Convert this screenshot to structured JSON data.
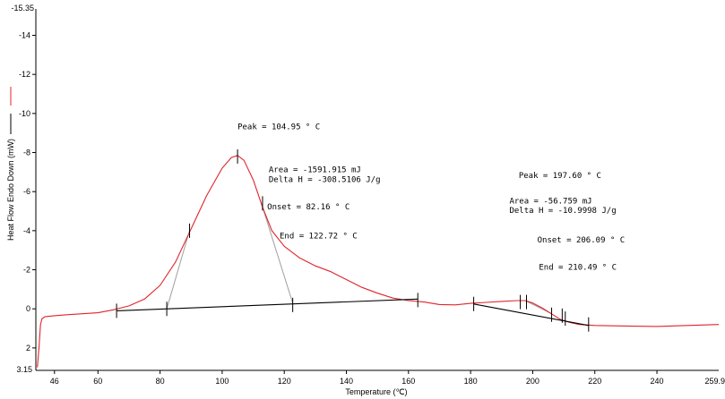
{
  "chart_data": {
    "type": "line",
    "xlabel": "Temperature (℃)",
    "ylabel": "Heat Flow Endo Down (mW)",
    "xlim": [
      40,
      259.9
    ],
    "ylim": [
      3.15,
      -15.35
    ],
    "x_ticks": [
      46,
      60,
      80,
      100,
      120,
      140,
      160,
      180,
      200,
      220,
      240
    ],
    "x_tick_labels": [
      "46",
      "60",
      "80",
      "100",
      "120",
      "140",
      "160",
      "180",
      "200",
      "220",
      "240"
    ],
    "x_max_label": "259.9",
    "y_ticks": [
      -14,
      -12,
      -10,
      -8,
      -6,
      -4,
      -2,
      0,
      2
    ],
    "y_tick_labels": [
      "-14",
      "-12",
      "-10",
      "-8",
      "-6",
      "-4",
      "-2",
      "0",
      "2"
    ],
    "y_top_label": "-15.35",
    "y_bottom_label": "3.15",
    "legend_position": "left",
    "series": [
      {
        "color": "#e0242a",
        "points": [
          [
            40.5,
            3.0
          ],
          [
            41,
            2.0
          ],
          [
            41.5,
            0.8
          ],
          [
            42,
            0.5
          ],
          [
            43,
            0.4
          ],
          [
            46,
            0.35
          ],
          [
            50,
            0.3
          ],
          [
            55,
            0.25
          ],
          [
            60,
            0.2
          ],
          [
            65,
            0.05
          ],
          [
            70,
            -0.15
          ],
          [
            75,
            -0.5
          ],
          [
            80,
            -1.2
          ],
          [
            85,
            -2.4
          ],
          [
            90,
            -4.1
          ],
          [
            95,
            -5.8
          ],
          [
            100,
            -7.2
          ],
          [
            103,
            -7.75
          ],
          [
            104.95,
            -7.85
          ],
          [
            107,
            -7.6
          ],
          [
            110,
            -6.6
          ],
          [
            113,
            -5.2
          ],
          [
            116,
            -4.0
          ],
          [
            120,
            -3.2
          ],
          [
            125,
            -2.6
          ],
          [
            130,
            -2.2
          ],
          [
            135,
            -1.9
          ],
          [
            140,
            -1.5
          ],
          [
            145,
            -1.1
          ],
          [
            150,
            -0.8
          ],
          [
            155,
            -0.55
          ],
          [
            160,
            -0.42
          ],
          [
            165,
            -0.35
          ],
          [
            170,
            -0.22
          ],
          [
            175,
            -0.2
          ],
          [
            180,
            -0.28
          ],
          [
            185,
            -0.33
          ],
          [
            190,
            -0.38
          ],
          [
            195,
            -0.42
          ],
          [
            197.6,
            -0.42
          ],
          [
            200,
            -0.3
          ],
          [
            203,
            -0.05
          ],
          [
            206,
            0.25
          ],
          [
            209,
            0.55
          ],
          [
            212,
            0.7
          ],
          [
            215,
            0.8
          ],
          [
            220,
            0.85
          ],
          [
            230,
            0.88
          ],
          [
            240,
            0.9
          ],
          [
            250,
            0.85
          ],
          [
            259.9,
            0.8
          ]
        ]
      },
      {
        "color": "#000000",
        "points": [
          [
            66,
            0.1
          ],
          [
            163,
            -0.5
          ]
        ]
      },
      {
        "color": "#000000",
        "points": [
          [
            181,
            -0.25
          ],
          [
            218,
            0.85
          ]
        ]
      }
    ],
    "guide_lines": [
      {
        "color": "#a0a0a0",
        "points": [
          [
            82.16,
            0.0
          ],
          [
            89.5,
            -4.0
          ]
        ]
      },
      {
        "color": "#a0a0a0",
        "points": [
          [
            113,
            -5.2
          ],
          [
            122.72,
            -0.3
          ]
        ]
      },
      {
        "color": "#a0a0a0",
        "points": [
          [
            197.6,
            -0.42
          ],
          [
            206.09,
            0.25
          ]
        ]
      }
    ],
    "markers": [
      [
        66,
        0.1
      ],
      [
        82.16,
        0.0
      ],
      [
        89.5,
        -4.0
      ],
      [
        104.95,
        -7.8
      ],
      [
        113,
        -5.4
      ],
      [
        122.72,
        -0.2
      ],
      [
        163,
        -0.45
      ],
      [
        181,
        -0.25
      ],
      [
        196,
        -0.35
      ],
      [
        198,
        -0.35
      ],
      [
        206.09,
        0.3
      ],
      [
        209.5,
        0.35
      ],
      [
        210.49,
        0.5
      ],
      [
        218,
        0.8
      ]
    ],
    "annotations": [
      {
        "text": "Peak = 104.95 ° C",
        "x": 104.95,
        "y": -9.2
      },
      {
        "text": "Area = -1591.915 mJ",
        "x": 115.0,
        "y": -7.0
      },
      {
        "text": "Delta H = -308.5106 J/g",
        "x": 115.0,
        "y": -6.5
      },
      {
        "text": "Onset = 82.16 ° C",
        "x": 114.5,
        "y": -5.1
      },
      {
        "text": "End = 122.72 ° C",
        "x": 118.5,
        "y": -3.6
      },
      {
        "text": "Peak = 197.60 ° C",
        "x": 195.5,
        "y": -6.7
      },
      {
        "text": "Area = -56.759 mJ",
        "x": 192.5,
        "y": -5.4
      },
      {
        "text": "Delta H = -10.9998 J/g",
        "x": 192.5,
        "y": -4.9
      },
      {
        "text": "Onset = 206.09 ° C",
        "x": 201.5,
        "y": -3.4
      },
      {
        "text": "End = 210.49 ° C",
        "x": 202.0,
        "y": -2.0
      }
    ]
  }
}
